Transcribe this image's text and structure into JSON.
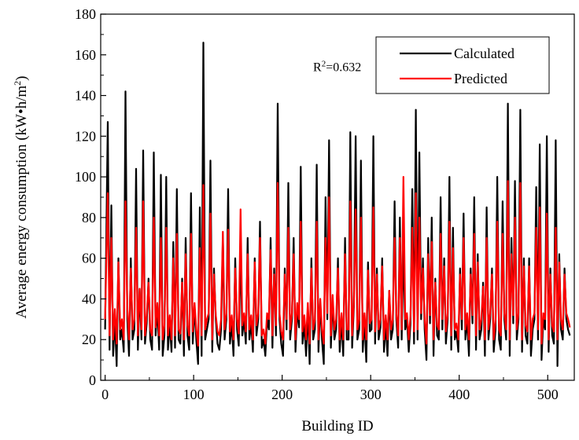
{
  "chart_data": {
    "type": "line",
    "title": "",
    "xlabel": "Building ID",
    "ylabel_parts": {
      "main": "Average energy consumption (kW•h/m",
      "sup": "2",
      "end": ")"
    },
    "xlim": [
      -5,
      530
    ],
    "ylim": [
      0,
      180
    ],
    "xticks": [
      0,
      100,
      200,
      300,
      400,
      500
    ],
    "xtick_labels": [
      "0",
      "100",
      "200",
      "300",
      "400",
      "500"
    ],
    "yticks": [
      0,
      20,
      40,
      60,
      80,
      100,
      120,
      140,
      160,
      180
    ],
    "ytick_labels": [
      "0",
      "20",
      "40",
      "60",
      "80",
      "100",
      "120",
      "140",
      "160",
      "180"
    ],
    "grid": false,
    "legend_position": "top-right",
    "annotation": {
      "base": "R",
      "sup": "2",
      "rest": "=0.632",
      "x": 235,
      "y": 152
    },
    "series": [
      {
        "name": "Calculated",
        "color": "#000000",
        "x": [
          0,
          3,
          5,
          7,
          9,
          11,
          13,
          15,
          17,
          19,
          21,
          23,
          25,
          27,
          29,
          31,
          33,
          35,
          37,
          39,
          41,
          43,
          45,
          47,
          49,
          51,
          53,
          55,
          57,
          59,
          61,
          63,
          65,
          67,
          69,
          71,
          73,
          75,
          77,
          79,
          81,
          83,
          85,
          87,
          89,
          91,
          93,
          95,
          97,
          99,
          101,
          103,
          105,
          107,
          109,
          111,
          113,
          115,
          117,
          119,
          121,
          123,
          125,
          127,
          129,
          131,
          133,
          135,
          137,
          139,
          141,
          143,
          145,
          147,
          149,
          151,
          153,
          155,
          157,
          159,
          161,
          163,
          165,
          167,
          169,
          171,
          173,
          175,
          177,
          179,
          181,
          183,
          185,
          187,
          189,
          191,
          193,
          195,
          197,
          199,
          201,
          203,
          205,
          207,
          209,
          211,
          213,
          215,
          217,
          219,
          221,
          223,
          225,
          227,
          229,
          231,
          233,
          235,
          237,
          239,
          241,
          243,
          245,
          247,
          249,
          251,
          253,
          255,
          257,
          259,
          261,
          263,
          265,
          267,
          269,
          271,
          273,
          275,
          277,
          279,
          281,
          283,
          285,
          287,
          289,
          291,
          293,
          295,
          297,
          299,
          301,
          303,
          305,
          307,
          309,
          311,
          313,
          315,
          317,
          319,
          321,
          323,
          325,
          327,
          329,
          331,
          333,
          335,
          337,
          339,
          341,
          343,
          345,
          347,
          349,
          351,
          353,
          355,
          357,
          359,
          361,
          363,
          365,
          367,
          369,
          371,
          373,
          375,
          377,
          379,
          381,
          383,
          385,
          387,
          389,
          391,
          393,
          395,
          397,
          399,
          401,
          403,
          405,
          407,
          409,
          411,
          413,
          415,
          417,
          419,
          421,
          423,
          425,
          427,
          429,
          431,
          433,
          435,
          437,
          439,
          441,
          443,
          445,
          447,
          449,
          451,
          453,
          455,
          457,
          459,
          461,
          463,
          465,
          467,
          469,
          471,
          473,
          475,
          477,
          479,
          481,
          483,
          485,
          487,
          489,
          491,
          493,
          495,
          497,
          499,
          501,
          503,
          505,
          507,
          509,
          511,
          513,
          515,
          517,
          519,
          521,
          523,
          525
        ],
        "y": [
          25,
          127,
          15,
          86,
          12,
          30,
          7,
          60,
          20,
          25,
          14,
          142,
          30,
          12,
          60,
          20,
          25,
          104,
          15,
          45,
          20,
          113,
          18,
          28,
          50,
          20,
          15,
          112,
          22,
          35,
          15,
          101,
          12,
          22,
          100,
          15,
          28,
          14,
          68,
          16,
          94,
          20,
          18,
          50,
          12,
          70,
          22,
          15,
          92,
          18,
          36,
          20,
          8,
          85,
          12,
          166,
          20,
          25,
          30,
          108,
          14,
          55,
          30,
          18,
          15,
          25,
          70,
          20,
          30,
          94,
          18,
          28,
          12,
          60,
          25,
          17,
          65,
          22,
          30,
          18,
          70,
          20,
          28,
          14,
          60,
          22,
          30,
          78,
          16,
          20,
          12,
          30,
          25,
          70,
          16,
          55,
          22,
          136,
          30,
          18,
          12,
          55,
          25,
          97,
          20,
          30,
          70,
          14,
          35,
          26,
          105,
          18,
          28,
          12,
          35,
          8,
          60,
          20,
          25,
          106,
          14,
          38,
          20,
          8,
          90,
          30,
          118,
          16,
          40,
          20,
          25,
          60,
          14,
          30,
          12,
          70,
          20,
          20,
          122,
          16,
          36,
          120,
          20,
          25,
          108,
          14,
          30,
          9,
          58,
          24,
          25,
          120,
          18,
          55,
          20,
          26,
          60,
          14,
          28,
          12,
          44,
          20,
          25,
          88,
          30,
          16,
          80,
          20,
          66,
          25,
          30,
          14,
          28,
          94,
          18,
          133,
          20,
          112,
          30,
          60,
          25,
          10,
          70,
          28,
          80,
          12,
          50,
          22,
          20,
          90,
          25,
          60,
          18,
          30,
          100,
          15,
          75,
          20,
          24,
          14,
          55,
          25,
          82,
          20,
          30,
          12,
          55,
          28,
          90,
          15,
          62,
          20,
          25,
          48,
          12,
          85,
          20,
          30,
          55,
          14,
          25,
          100,
          20,
          15,
          88,
          30,
          20,
          136,
          12,
          70,
          28,
          98,
          20,
          30,
          133,
          14,
          60,
          22,
          18,
          60,
          12,
          25,
          30,
          95,
          20,
          116,
          10,
          30,
          25,
          120,
          14,
          55,
          22,
          18,
          118,
          7,
          62,
          25,
          20,
          55,
          30,
          25,
          22
        ]
      },
      {
        "name": "Predicted",
        "color": "#ff0000",
        "x": [
          0,
          3,
          5,
          7,
          9,
          11,
          13,
          15,
          17,
          19,
          21,
          23,
          25,
          27,
          29,
          31,
          33,
          35,
          37,
          39,
          41,
          43,
          45,
          47,
          49,
          51,
          53,
          55,
          57,
          59,
          61,
          63,
          65,
          67,
          69,
          71,
          73,
          75,
          77,
          79,
          81,
          83,
          85,
          87,
          89,
          91,
          93,
          95,
          97,
          99,
          101,
          103,
          105,
          107,
          109,
          111,
          113,
          115,
          117,
          119,
          121,
          123,
          125,
          127,
          129,
          131,
          133,
          135,
          137,
          139,
          141,
          143,
          145,
          147,
          149,
          151,
          153,
          155,
          157,
          159,
          161,
          163,
          165,
          167,
          169,
          171,
          173,
          175,
          177,
          179,
          181,
          183,
          185,
          187,
          189,
          191,
          193,
          195,
          197,
          199,
          201,
          203,
          205,
          207,
          209,
          211,
          213,
          215,
          217,
          219,
          221,
          223,
          225,
          227,
          229,
          231,
          233,
          235,
          237,
          239,
          241,
          243,
          245,
          247,
          249,
          251,
          253,
          255,
          257,
          259,
          261,
          263,
          265,
          267,
          269,
          271,
          273,
          275,
          277,
          279,
          281,
          283,
          285,
          287,
          289,
          291,
          293,
          295,
          297,
          299,
          301,
          303,
          305,
          307,
          309,
          311,
          313,
          315,
          317,
          319,
          321,
          323,
          325,
          327,
          329,
          331,
          333,
          335,
          337,
          339,
          341,
          343,
          345,
          347,
          349,
          351,
          353,
          355,
          357,
          359,
          361,
          363,
          365,
          367,
          369,
          371,
          373,
          375,
          377,
          379,
          381,
          383,
          385,
          387,
          389,
          391,
          393,
          395,
          397,
          399,
          401,
          403,
          405,
          407,
          409,
          411,
          413,
          415,
          417,
          419,
          421,
          423,
          425,
          427,
          429,
          431,
          433,
          435,
          437,
          439,
          441,
          443,
          445,
          447,
          449,
          451,
          453,
          455,
          457,
          459,
          461,
          463,
          465,
          467,
          469,
          471,
          473,
          475,
          477,
          479,
          481,
          483,
          485,
          487,
          489,
          491,
          493,
          495,
          497,
          499,
          501,
          503,
          505,
          507,
          509,
          511,
          513,
          515,
          517,
          519,
          521,
          523,
          525
        ],
        "y": [
          30,
          92,
          22,
          70,
          20,
          35,
          18,
          58,
          25,
          30,
          20,
          88,
          35,
          20,
          55,
          25,
          30,
          75,
          22,
          45,
          25,
          88,
          22,
          32,
          48,
          25,
          22,
          80,
          26,
          38,
          22,
          70,
          20,
          27,
          75,
          22,
          32,
          20,
          60,
          22,
          72,
          25,
          23,
          48,
          20,
          62,
          27,
          22,
          72,
          24,
          38,
          25,
          17,
          65,
          22,
          96,
          25,
          30,
          33,
          82,
          20,
          52,
          32,
          24,
          22,
          30,
          73,
          25,
          33,
          74,
          24,
          32,
          20,
          55,
          30,
          23,
          84,
          27,
          33,
          24,
          62,
          25,
          32,
          20,
          58,
          27,
          33,
          70,
          22,
          25,
          18,
          33,
          30,
          64,
          22,
          52,
          27,
          97,
          33,
          24,
          20,
          52,
          30,
          75,
          25,
          33,
          62,
          20,
          38,
          30,
          78,
          24,
          32,
          20,
          38,
          18,
          55,
          25,
          30,
          78,
          20,
          40,
          25,
          18,
          70,
          33,
          90,
          22,
          42,
          25,
          30,
          55,
          20,
          33,
          20,
          62,
          25,
          25,
          88,
          22,
          38,
          84,
          25,
          30,
          80,
          20,
          33,
          20,
          54,
          28,
          30,
          85,
          24,
          52,
          25,
          30,
          56,
          20,
          32,
          20,
          44,
          25,
          30,
          70,
          33,
          22,
          70,
          25,
          100,
          30,
          33,
          20,
          32,
          75,
          24,
          92,
          25,
          80,
          33,
          55,
          30,
          18,
          62,
          32,
          68,
          20,
          48,
          27,
          25,
          72,
          30,
          56,
          24,
          33,
          78,
          22,
          65,
          25,
          28,
          20,
          52,
          30,
          70,
          25,
          33,
          20,
          52,
          32,
          72,
          22,
          58,
          25,
          30,
          46,
          20,
          70,
          25,
          33,
          52,
          20,
          30,
          78,
          25,
          22,
          72,
          33,
          25,
          98,
          20,
          62,
          32,
          80,
          25,
          33,
          97,
          20,
          56,
          27,
          24,
          56,
          20,
          30,
          33,
          75,
          25,
          85,
          18,
          33,
          30,
          82,
          20,
          52,
          27,
          24,
          75,
          20,
          58,
          30,
          25,
          52,
          33,
          30,
          26
        ]
      }
    ]
  }
}
